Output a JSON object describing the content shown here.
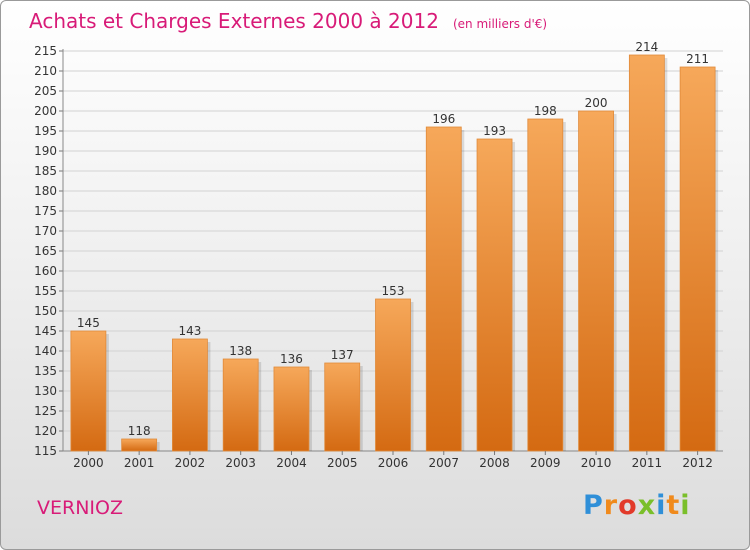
{
  "title": "Achats et Charges Externes 2000 à 2012",
  "subtitle": "(en milliers d'€)",
  "commune": "VERNIOZ",
  "logo": {
    "text": "Proxiti",
    "letters": [
      "P",
      "r",
      "o",
      "x",
      "i",
      "t",
      "i"
    ]
  },
  "colors": {
    "title": "#d81b78",
    "bar_top": "#f6a85a",
    "bar_bottom": "#d46a12",
    "logo": [
      "#2f8fd8",
      "#f08a1c",
      "#e23a2a",
      "#7abf2a",
      "#2f8fd8",
      "#f08a1c",
      "#7abf2a"
    ]
  },
  "chart_data": {
    "type": "bar",
    "categories": [
      "2000",
      "2001",
      "2002",
      "2003",
      "2004",
      "2005",
      "2006",
      "2007",
      "2008",
      "2009",
      "2010",
      "2011",
      "2012"
    ],
    "values": [
      145,
      118,
      143,
      138,
      136,
      137,
      153,
      196,
      193,
      198,
      200,
      214,
      211
    ],
    "title": "Achats et Charges Externes 2000 à 2012",
    "xlabel": "",
    "ylabel": "",
    "ylim": [
      115,
      215
    ],
    "yticks": [
      115,
      120,
      125,
      130,
      135,
      140,
      145,
      150,
      155,
      160,
      165,
      170,
      175,
      180,
      185,
      190,
      195,
      200,
      205,
      210,
      215
    ],
    "grid": true
  }
}
